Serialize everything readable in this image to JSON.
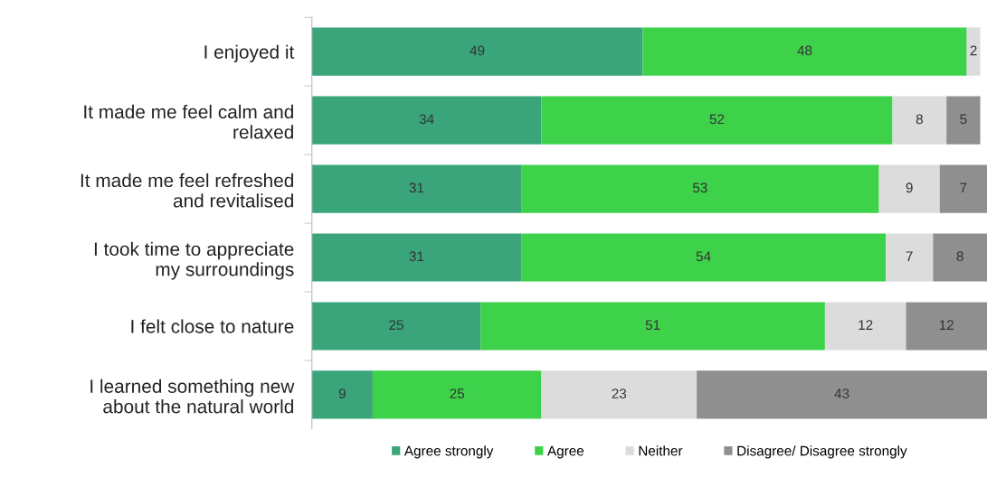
{
  "chart_data": {
    "type": "bar",
    "orientation": "horizontal",
    "stacked": true,
    "data_labels": true,
    "legend": "bottom",
    "grid": false,
    "categories": [
      "I enjoyed it",
      "It made me feel calm and\nrelaxed",
      "It made me feel refreshed\nand revitalised",
      "I took time to appreciate\nmy surroundings",
      "I felt close to nature",
      "I learned something new\nabout the natural world"
    ],
    "xlim": [
      0,
      100
    ],
    "series": [
      {
        "name": "Agree strongly",
        "color": "#3aa57a",
        "values": [
          49,
          34,
          31,
          31,
          25,
          9
        ]
      },
      {
        "name": "Agree",
        "color": "#3dd24a",
        "values": [
          48,
          52,
          53,
          54,
          51,
          25
        ]
      },
      {
        "name": "Neither",
        "color": "#dcdcdc",
        "values": [
          2,
          8,
          9,
          7,
          12,
          23
        ]
      },
      {
        "name": "Disagree/ Disagree strongly",
        "color": "#8f8f8f",
        "values": [
          null,
          5,
          7,
          8,
          12,
          43
        ]
      }
    ]
  }
}
